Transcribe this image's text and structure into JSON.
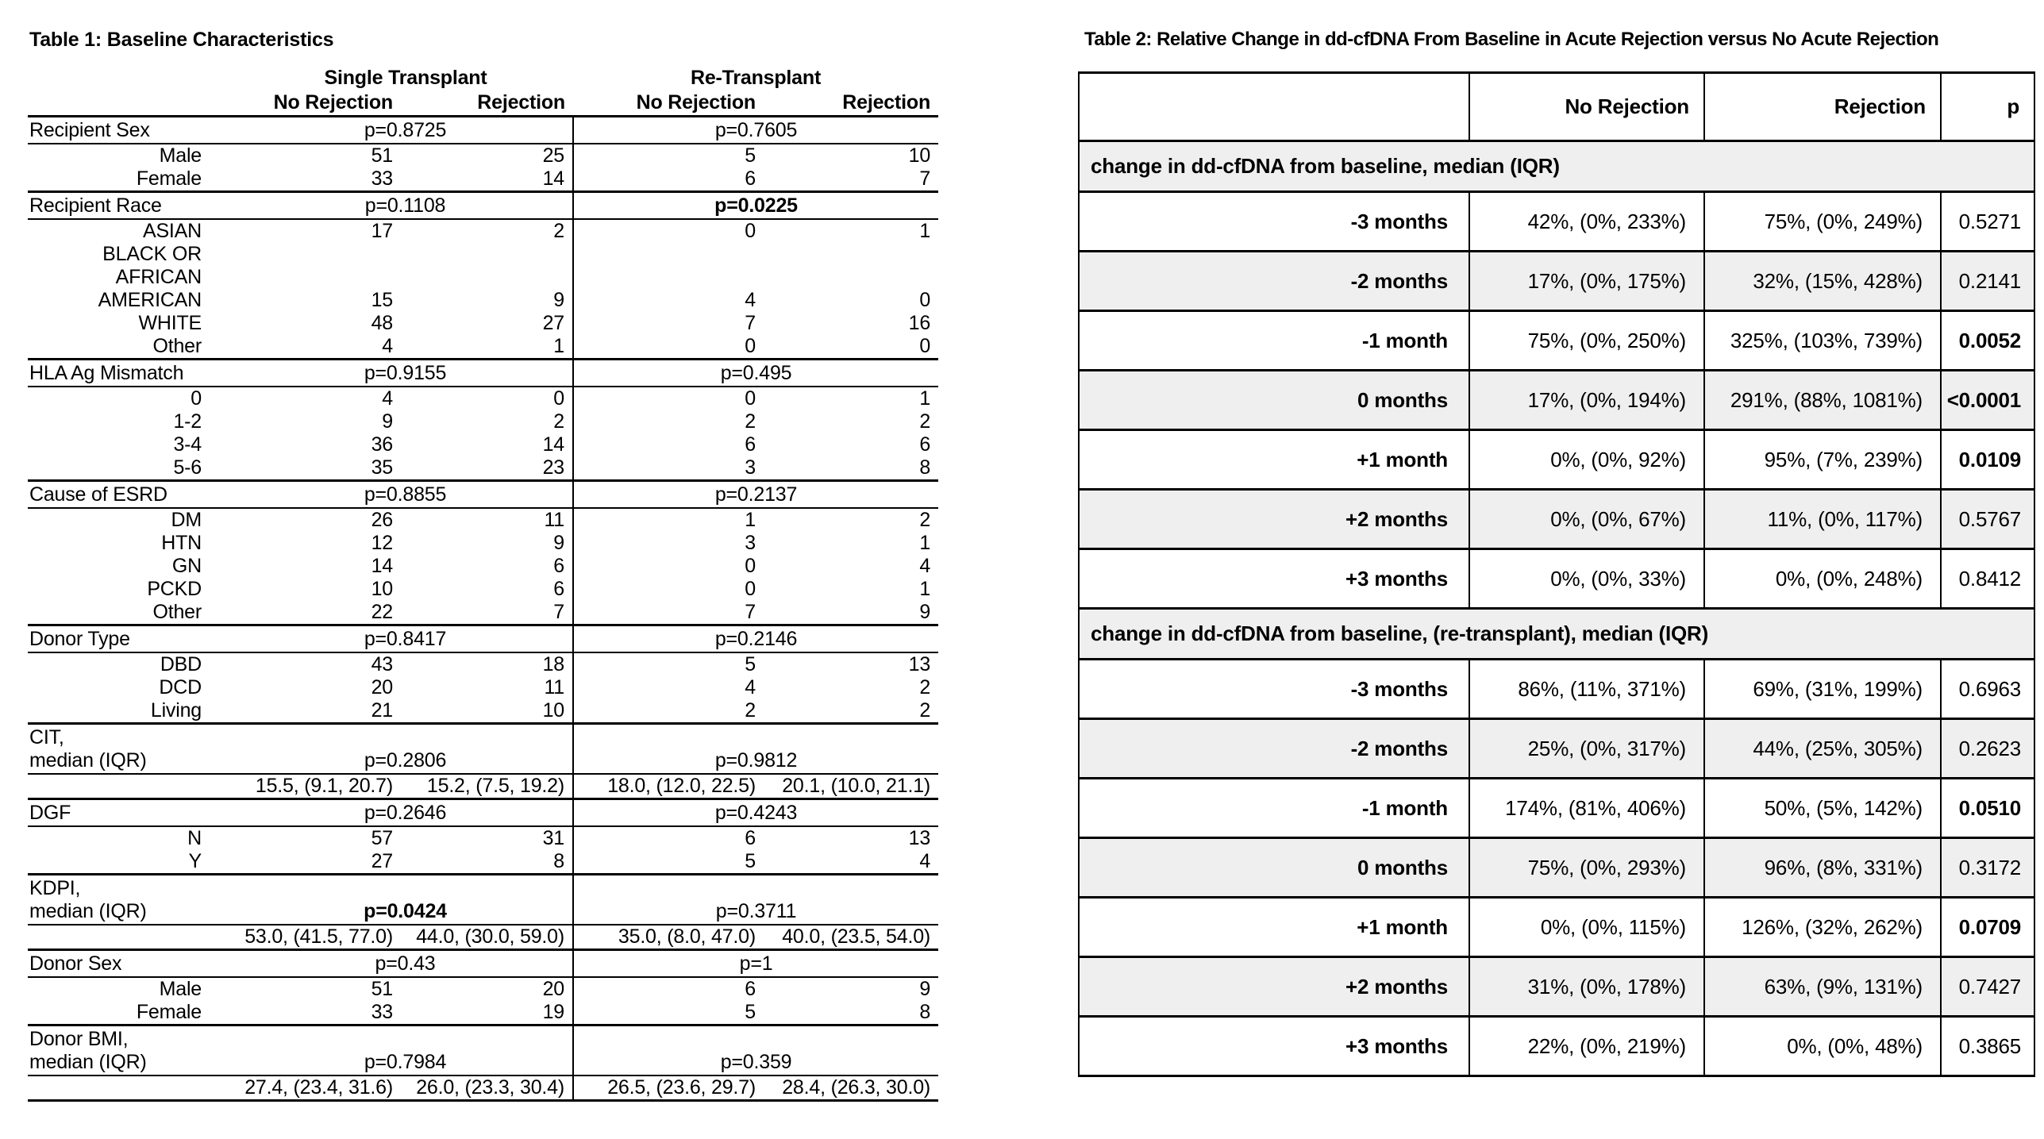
{
  "colors": {
    "line": "#000000",
    "text": "#000000",
    "background": "#ffffff",
    "section_row_bg": "#efefef",
    "stripe_row_bg": "#efefef"
  },
  "table1": {
    "title": "Table 1: Baseline Characteristics",
    "col_groups": [
      "Single Transplant",
      "Re-Transplant"
    ],
    "col_headers": [
      "No Rejection",
      "Rejection",
      "No Rejection",
      "Rejection"
    ],
    "sections": [
      {
        "label": "Recipient Sex",
        "p_single": "p=0.8725",
        "p_single_bold": false,
        "p_re": "p=0.7605",
        "p_re_bold": false,
        "rows": [
          {
            "label": "Male",
            "single_no_rejection": "51",
            "single_rejection": "25",
            "re_no_rejection": "5",
            "re_rejection": "10"
          },
          {
            "label": "Female",
            "single_no_rejection": "33",
            "single_rejection": "14",
            "re_no_rejection": "6",
            "re_rejection": "7"
          }
        ]
      },
      {
        "label": "Recipient Race",
        "p_single": "p=0.1108",
        "p_single_bold": false,
        "p_re": "p=0.0225",
        "p_re_bold": true,
        "rows": [
          {
            "label": "ASIAN",
            "single_no_rejection": "17",
            "single_rejection": "2",
            "re_no_rejection": "0",
            "re_rejection": "1"
          },
          {
            "label": "BLACK OR\nAFRICAN\nAMERICAN",
            "single_no_rejection": "15",
            "single_rejection": "9",
            "re_no_rejection": "4",
            "re_rejection": "0"
          },
          {
            "label": "WHITE",
            "single_no_rejection": "48",
            "single_rejection": "27",
            "re_no_rejection": "7",
            "re_rejection": "16"
          },
          {
            "label": "Other",
            "single_no_rejection": "4",
            "single_rejection": "1",
            "re_no_rejection": "0",
            "re_rejection": "0"
          }
        ]
      },
      {
        "label": "HLA Ag Mismatch",
        "p_single": "p=0.9155",
        "p_single_bold": false,
        "p_re": "p=0.495",
        "p_re_bold": false,
        "rows": [
          {
            "label": "0",
            "single_no_rejection": "4",
            "single_rejection": "0",
            "re_no_rejection": "0",
            "re_rejection": "1"
          },
          {
            "label": "1-2",
            "single_no_rejection": "9",
            "single_rejection": "2",
            "re_no_rejection": "2",
            "re_rejection": "2"
          },
          {
            "label": "3-4",
            "single_no_rejection": "36",
            "single_rejection": "14",
            "re_no_rejection": "6",
            "re_rejection": "6"
          },
          {
            "label": "5-6",
            "single_no_rejection": "35",
            "single_rejection": "23",
            "re_no_rejection": "3",
            "re_rejection": "8"
          }
        ]
      },
      {
        "label": "Cause of ESRD",
        "p_single": "p=0.8855",
        "p_single_bold": false,
        "p_re": "p=0.2137",
        "p_re_bold": false,
        "rows": [
          {
            "label": "DM",
            "single_no_rejection": "26",
            "single_rejection": "11",
            "re_no_rejection": "1",
            "re_rejection": "2"
          },
          {
            "label": "HTN",
            "single_no_rejection": "12",
            "single_rejection": "9",
            "re_no_rejection": "3",
            "re_rejection": "1"
          },
          {
            "label": "GN",
            "single_no_rejection": "14",
            "single_rejection": "6",
            "re_no_rejection": "0",
            "re_rejection": "4"
          },
          {
            "label": "PCKD",
            "single_no_rejection": "10",
            "single_rejection": "6",
            "re_no_rejection": "0",
            "re_rejection": "1"
          },
          {
            "label": "Other",
            "single_no_rejection": "22",
            "single_rejection": "7",
            "re_no_rejection": "7",
            "re_rejection": "9"
          }
        ]
      },
      {
        "label": "Donor Type",
        "p_single": "p=0.8417",
        "p_single_bold": false,
        "p_re": "p=0.2146",
        "p_re_bold": false,
        "rows": [
          {
            "label": "DBD",
            "single_no_rejection": "43",
            "single_rejection": "18",
            "re_no_rejection": "5",
            "re_rejection": "13"
          },
          {
            "label": "DCD",
            "single_no_rejection": "20",
            "single_rejection": "11",
            "re_no_rejection": "4",
            "re_rejection": "2"
          },
          {
            "label": "Living",
            "single_no_rejection": "21",
            "single_rejection": "10",
            "re_no_rejection": "2",
            "re_rejection": "2"
          }
        ]
      },
      {
        "label": "CIT,\nmedian (IQR)",
        "p_single": "p=0.2806",
        "p_single_bold": false,
        "p_re": "p=0.9812",
        "p_re_bold": false,
        "rows": [
          {
            "label": "",
            "single_no_rejection": "15.5, (9.1, 20.7)",
            "single_rejection": "15.2, (7.5, 19.2)",
            "re_no_rejection": "18.0, (12.0, 22.5)",
            "re_rejection": "20.1, (10.0, 21.1)"
          }
        ]
      },
      {
        "label": "DGF",
        "p_single": "p=0.2646",
        "p_single_bold": false,
        "p_re": "p=0.4243",
        "p_re_bold": false,
        "rows": [
          {
            "label": "N",
            "single_no_rejection": "57",
            "single_rejection": "31",
            "re_no_rejection": "6",
            "re_rejection": "13"
          },
          {
            "label": "Y",
            "single_no_rejection": "27",
            "single_rejection": "8",
            "re_no_rejection": "5",
            "re_rejection": "4"
          }
        ]
      },
      {
        "label": "KDPI,\nmedian (IQR)",
        "p_single": "p=0.0424",
        "p_single_bold": true,
        "p_re": "p=0.3711",
        "p_re_bold": false,
        "rows": [
          {
            "label": "",
            "single_no_rejection": "53.0, (41.5, 77.0)",
            "single_rejection": "44.0, (30.0, 59.0)",
            "re_no_rejection": "35.0, (8.0, 47.0)",
            "re_rejection": "40.0, (23.5, 54.0)"
          }
        ]
      },
      {
        "label": "Donor Sex",
        "p_single": "p=0.43",
        "p_single_bold": false,
        "p_re": "p=1",
        "p_re_bold": false,
        "rows": [
          {
            "label": "Male",
            "single_no_rejection": "51",
            "single_rejection": "20",
            "re_no_rejection": "6",
            "re_rejection": "9"
          },
          {
            "label": "Female",
            "single_no_rejection": "33",
            "single_rejection": "19",
            "re_no_rejection": "5",
            "re_rejection": "8"
          }
        ]
      },
      {
        "label": "Donor BMI,\nmedian (IQR)",
        "p_single": "p=0.7984",
        "p_single_bold": false,
        "p_re": "p=0.359",
        "p_re_bold": false,
        "rows": [
          {
            "label": "",
            "single_no_rejection": "27.4, (23.4, 31.6)",
            "single_rejection": "26.0, (23.3, 30.4)",
            "re_no_rejection": "26.5, (23.6, 29.7)",
            "re_rejection": "28.4, (26.3, 30.0)"
          }
        ]
      }
    ]
  },
  "table2": {
    "title": "Table 2: Relative Change in dd-cfDNA From Baseline in Acute Rejection versus No Acute Rejection",
    "col_headers": [
      "No Rejection",
      "Rejection",
      "p"
    ],
    "sections": [
      {
        "header": "change in dd-cfDNA from baseline, median (IQR)",
        "rows": [
          {
            "label": "-3 months",
            "no_rejection": "42%, (0%, 233%)",
            "rejection": "75%, (0%, 249%)",
            "p": "0.5271",
            "p_bold": false
          },
          {
            "label": "-2 months",
            "no_rejection": "17%, (0%, 175%)",
            "rejection": "32%, (15%, 428%)",
            "p": "0.2141",
            "p_bold": false
          },
          {
            "label": "-1 month",
            "no_rejection": "75%, (0%, 250%)",
            "rejection": "325%, (103%, 739%)",
            "p": "0.0052",
            "p_bold": true
          },
          {
            "label": "0 months",
            "no_rejection": "17%, (0%, 194%)",
            "rejection": "291%, (88%, 1081%)",
            "p": "<0.0001",
            "p_bold": true
          },
          {
            "label": "+1 month",
            "no_rejection": "0%, (0%, 92%)",
            "rejection": "95%, (7%, 239%)",
            "p": "0.0109",
            "p_bold": true
          },
          {
            "label": "+2 months",
            "no_rejection": "0%, (0%, 67%)",
            "rejection": "11%, (0%, 117%)",
            "p": "0.5767",
            "p_bold": false
          },
          {
            "label": "+3 months",
            "no_rejection": "0%, (0%, 33%)",
            "rejection": "0%, (0%, 248%)",
            "p": "0.8412",
            "p_bold": false
          }
        ]
      },
      {
        "header": "change in dd-cfDNA from baseline, (re-transplant), median (IQR)",
        "rows": [
          {
            "label": "-3 months",
            "no_rejection": "86%, (11%, 371%)",
            "rejection": "69%, (31%, 199%)",
            "p": "0.6963",
            "p_bold": false
          },
          {
            "label": "-2 months",
            "no_rejection": "25%, (0%, 317%)",
            "rejection": "44%, (25%, 305%)",
            "p": "0.2623",
            "p_bold": false
          },
          {
            "label": "-1 month",
            "no_rejection": "174%, (81%, 406%)",
            "rejection": "50%, (5%, 142%)",
            "p": "0.0510",
            "p_bold": true
          },
          {
            "label": "0 months",
            "no_rejection": "75%, (0%, 293%)",
            "rejection": "96%, (8%, 331%)",
            "p": "0.3172",
            "p_bold": false
          },
          {
            "label": "+1 month",
            "no_rejection": "0%, (0%, 115%)",
            "rejection": "126%, (32%, 262%)",
            "p": "0.0709",
            "p_bold": true
          },
          {
            "label": "+2 months",
            "no_rejection": "31%, (0%, 178%)",
            "rejection": "63%, (9%, 131%)",
            "p": "0.7427",
            "p_bold": false
          },
          {
            "label": "+3 months",
            "no_rejection": "22%, (0%, 219%)",
            "rejection": "0%, (0%, 48%)",
            "p": "0.3865",
            "p_bold": false
          }
        ]
      }
    ]
  }
}
